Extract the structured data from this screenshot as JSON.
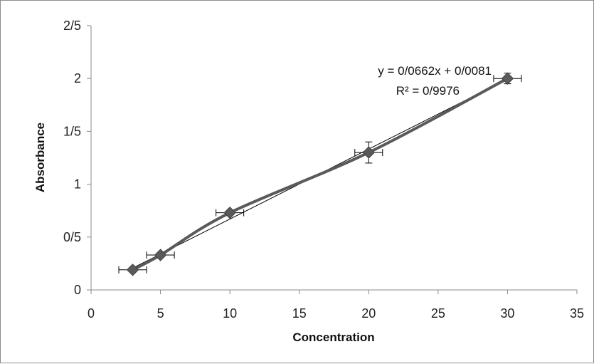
{
  "chart_data": {
    "type": "scatter",
    "title": "",
    "xlabel": "Concentration",
    "ylabel": "Absorbance",
    "xlim": [
      0,
      35
    ],
    "ylim": [
      0,
      2.5
    ],
    "x_ticks": [
      0,
      5,
      10,
      15,
      20,
      25,
      30,
      35
    ],
    "x_tick_labels": [
      "0",
      "5",
      "10",
      "15",
      "20",
      "25",
      "30",
      "35"
    ],
    "y_ticks": [
      0,
      0.5,
      1,
      1.5,
      2,
      2.5
    ],
    "y_tick_labels": [
      "0",
      "0/5",
      "1",
      "1/5",
      "2",
      "2/5"
    ],
    "grid": false,
    "legend": "none",
    "series": [
      {
        "x": [
          3,
          5,
          10,
          20,
          30
        ],
        "y": [
          0.19,
          0.33,
          0.73,
          1.3,
          2.0
        ],
        "x_error": [
          1,
          1,
          1,
          1,
          1
        ],
        "y_error": [
          0.02,
          0.02,
          0.02,
          0.1,
          0.05
        ],
        "marker": "diamond",
        "line": "smooth",
        "color": "#5a5a5a"
      }
    ],
    "trendline": {
      "type": "linear",
      "slope": 0.0662,
      "intercept": 0.0081,
      "equation_label": "y = 0/0662x + 0/0081",
      "r2_label": "R² = 0/9976",
      "color": "#000000"
    }
  }
}
